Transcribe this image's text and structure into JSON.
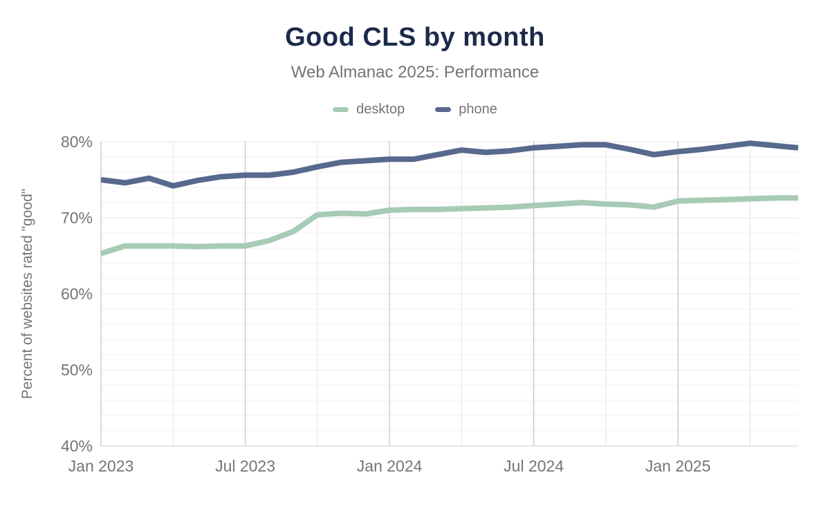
{
  "chart_data": {
    "type": "line",
    "title": "Good CLS by month",
    "subtitle": "Web Almanac 2025: Performance",
    "ylabel": "Percent of websites rated \"good\"",
    "ylim": [
      40,
      80
    ],
    "y_minor_step": 2,
    "y_ticks": [
      {
        "value": 40,
        "label": "40%"
      },
      {
        "value": 50,
        "label": "50%"
      },
      {
        "value": 60,
        "label": "60%"
      },
      {
        "value": 70,
        "label": "70%"
      },
      {
        "value": 80,
        "label": "80%"
      }
    ],
    "x_tick_indices": [
      0,
      6,
      12,
      18,
      24
    ],
    "x_tick_labels": [
      "Jan 2023",
      "Jul 2023",
      "Jan 2024",
      "Jul 2024",
      "Jan 2025"
    ],
    "x_grid_major_indices": [
      0,
      6,
      12,
      18,
      24
    ],
    "x_grid_minor_indices": [
      3,
      9,
      15,
      21,
      27
    ],
    "months": [
      "Jan 2023",
      "Feb 2023",
      "Mar 2023",
      "Apr 2023",
      "May 2023",
      "Jun 2023",
      "Jul 2023",
      "Aug 2023",
      "Sep 2023",
      "Oct 2023",
      "Nov 2023",
      "Dec 2023",
      "Jan 2024",
      "Feb 2024",
      "Mar 2024",
      "Apr 2024",
      "May 2024",
      "Jun 2024",
      "Jul 2024",
      "Aug 2024",
      "Sep 2024",
      "Oct 2024",
      "Nov 2024",
      "Dec 2024",
      "Jan 2025",
      "Feb 2025",
      "Mar 2025",
      "Apr 2025",
      "May 2025",
      "Jun 2025"
    ],
    "series": [
      {
        "name": "desktop",
        "color": "#a7cbb5",
        "values": [
          65.3,
          66.3,
          66.3,
          66.3,
          66.2,
          66.3,
          66.3,
          67.0,
          68.2,
          70.4,
          70.6,
          70.5,
          71.0,
          71.1,
          71.1,
          71.2,
          71.3,
          71.4,
          71.6,
          71.8,
          72.0,
          71.8,
          71.7,
          71.4,
          72.2,
          72.3,
          72.4,
          72.5,
          72.6,
          72.6
        ]
      },
      {
        "name": "phone",
        "color": "#57698d",
        "values": [
          75.0,
          74.6,
          75.2,
          74.2,
          74.9,
          75.4,
          75.6,
          75.6,
          76.0,
          76.7,
          77.3,
          77.5,
          77.7,
          77.7,
          78.3,
          78.9,
          78.6,
          78.8,
          79.2,
          79.4,
          79.6,
          79.6,
          79.0,
          78.3,
          78.7,
          79.0,
          79.4,
          79.8,
          79.5,
          79.2
        ]
      }
    ],
    "legend_position": "top",
    "grid": true,
    "colors": {
      "title": "#1c2a4a",
      "text": "#757575",
      "grid_minor_h": "#f1f1f1",
      "grid_major_h": "#e4e4e4",
      "grid_minor_v": "#e3e3e3",
      "grid_major_v": "#c4c4c4",
      "axis_bottom": "#d6d6d6"
    }
  }
}
